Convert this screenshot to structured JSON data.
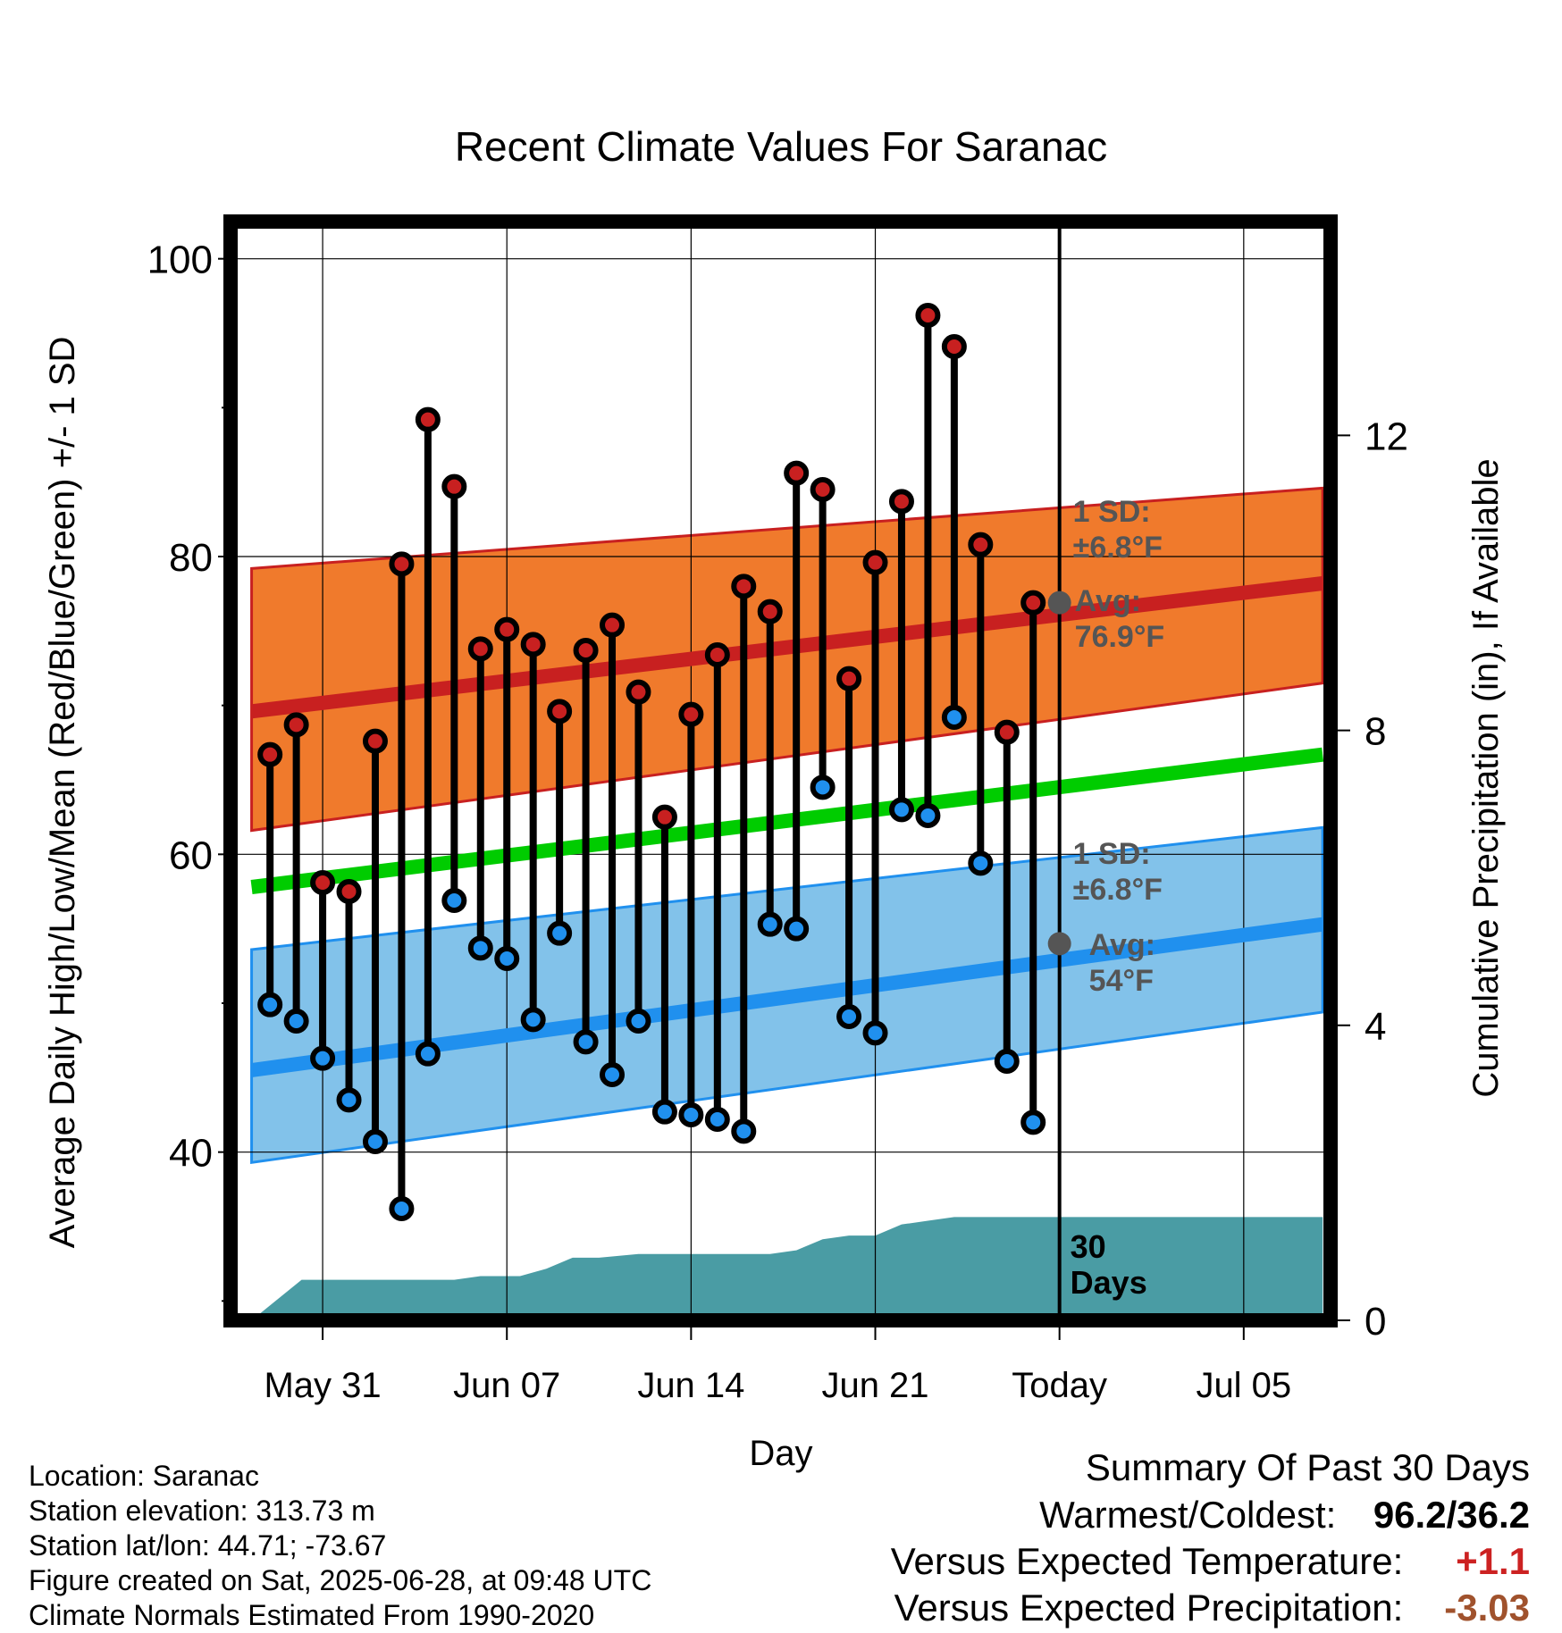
{
  "chart_data": {
    "type": "climate_range",
    "title": "Recent Climate Values For Saranac",
    "xlabel": "Day",
    "ylabel": "Average Daily High/Low/Mean (Red/Blue/Green) +/- 1 SD",
    "y2label": "Cumulative Precipitation (in), If Available",
    "ylim": [
      28.7,
      102.5
    ],
    "y2lim": [
      0,
      14.9
    ],
    "xlim": [
      -3.5,
      38.3
    ],
    "x_ticks": [
      {
        "label": "May 31",
        "x": 0
      },
      {
        "label": "Jun 07",
        "x": 7
      },
      {
        "label": "Jun 14",
        "x": 14
      },
      {
        "label": "Jun 21",
        "x": 21
      },
      {
        "label": "Today",
        "x": 28
      },
      {
        "label": "Jul 05",
        "x": 35
      }
    ],
    "y_ticks": [
      40,
      60,
      80,
      100
    ],
    "y2_ticks": [
      0,
      4,
      8,
      12
    ],
    "grid": true,
    "days_x": [
      -2,
      -1,
      0,
      1,
      2,
      3,
      4,
      5,
      6,
      7,
      8,
      9,
      10,
      11,
      12,
      13,
      14,
      15,
      16,
      17,
      18,
      19,
      20,
      21,
      22,
      23,
      24,
      25,
      26,
      27
    ],
    "series": [
      {
        "name": "High",
        "color": "#c82020",
        "values": [
          66.7,
          68.7,
          58.1,
          57.5,
          67.6,
          79.5,
          89.2,
          84.7,
          73.8,
          75.1,
          74.1,
          69.6,
          73.7,
          75.4,
          70.9,
          62.5,
          69.4,
          73.4,
          78.0,
          76.3,
          85.6,
          84.5,
          71.8,
          79.6,
          83.7,
          96.2,
          94.1,
          80.8,
          68.2,
          76.9
        ]
      },
      {
        "name": "Low",
        "color": "#2090ee",
        "values": [
          49.9,
          48.8,
          46.3,
          43.5,
          40.7,
          36.2,
          46.6,
          56.9,
          53.7,
          53.0,
          48.9,
          54.7,
          47.4,
          45.2,
          48.8,
          42.7,
          42.5,
          42.2,
          41.4,
          55.3,
          55.0,
          64.5,
          49.1,
          48.0,
          63.0,
          62.6,
          69.2,
          59.4,
          46.1,
          42.0
        ]
      }
    ],
    "normals": {
      "x": [
        -2.7,
        38
      ],
      "high_avg": [
        69.6,
        78.2
      ],
      "high_sd_upper": [
        79.2,
        84.6
      ],
      "high_sd_lower": [
        61.6,
        71.5
      ],
      "mean_avg": [
        57.8,
        66.7
      ],
      "low_avg": [
        45.5,
        55.3
      ],
      "low_sd_upper": [
        53.6,
        61.8
      ],
      "low_sd_lower": [
        39.3,
        49.4
      ]
    },
    "precip": {
      "x": [
        -2.7,
        -0.8,
        5,
        6,
        7.5,
        8.5,
        9.5,
        10.5,
        12,
        15,
        17,
        18,
        19,
        20,
        21,
        22,
        23,
        24,
        38
      ],
      "values": [
        0,
        0.55,
        0.55,
        0.6,
        0.6,
        0.7,
        0.85,
        0.85,
        0.9,
        0.9,
        0.9,
        0.95,
        1.1,
        1.15,
        1.15,
        1.3,
        1.35,
        1.4,
        1.4
      ]
    },
    "annotations": {
      "high_sd_label": [
        "1 SD:",
        "±6.8°F"
      ],
      "high_avg_label": [
        "Avg:",
        "76.9°F"
      ],
      "low_sd_label": [
        "1 SD:",
        "±6.8°F"
      ],
      "low_avg_label": [
        "Avg:",
        "54°F"
      ],
      "today_high_avg": 76.9,
      "today_low_avg": 54,
      "days_label": [
        "30",
        "Days"
      ]
    },
    "colors": {
      "high_band": "#f07a2c",
      "high_line": "#c82020",
      "low_band": "#82c2ea",
      "low_line": "#2090ee",
      "mean_line": "#00cc00",
      "precip": "#4a9ca4",
      "annotation": "#555555"
    }
  },
  "footer": {
    "location": "Location: Saranac",
    "elevation": "Station elevation: 313.73 m",
    "latlon": "Station lat/lon: 44.71; -73.67",
    "created": "Figure created on Sat, 2025-06-28, at 09:48 UTC",
    "normals": "Climate Normals Estimated From 1990-2020"
  },
  "summary": {
    "heading": "Summary Of Past 30 Days",
    "warm_cold_label": "Warmest/Coldest:",
    "warm_cold_value": "96.2/36.2",
    "temp_label": "Versus Expected Temperature:",
    "temp_value": "+1.1",
    "temp_color": "#cc2222",
    "precip_label": "Versus Expected Precipitation:",
    "precip_value": "-3.03",
    "precip_color": "#a0522d"
  }
}
